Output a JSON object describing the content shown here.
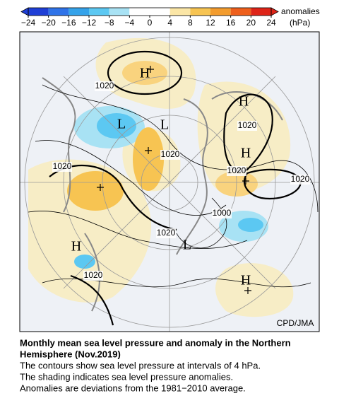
{
  "colorbar": {
    "ticks": [
      {
        "value": -24,
        "label": "−24"
      },
      {
        "value": -20,
        "label": "−20"
      },
      {
        "value": -16,
        "label": "−16"
      },
      {
        "value": -12,
        "label": "−12"
      },
      {
        "value": -8,
        "label": "−8"
      },
      {
        "value": -4,
        "label": "−4"
      },
      0,
      4,
      8,
      12,
      16,
      20,
      24
    ],
    "colors": [
      "#1f3fd6",
      "#2f73e8",
      "#35a3ea",
      "#5cc8f2",
      "#a8e2f4",
      "#ffffff",
      "#ffffff",
      "#fbe6a6",
      "#f7c452",
      "#f39c2e",
      "#ee5f1c",
      "#de2418"
    ],
    "unit_label": "anomalies",
    "unit": "(hPa)"
  },
  "map": {
    "labels": [
      "H",
      "1020",
      "H",
      "L",
      "L",
      "1020",
      "1020",
      "H",
      "1020",
      "1020",
      "1020",
      "1000",
      "1020",
      "L",
      "H",
      "1020",
      "H"
    ],
    "credit": "CPD/JMA"
  },
  "caption": {
    "title_lines": [
      "Monthly mean sea level pressure and anomaly in the Northern",
      "Hemisphere (Nov.2019)"
    ],
    "lines": [
      "The contours show sea level pressure at intervals of 4 hPa.",
      "The shading indicates sea level pressure anomalies.",
      "Anomalies are deviations from the 1981−2010 average."
    ]
  }
}
